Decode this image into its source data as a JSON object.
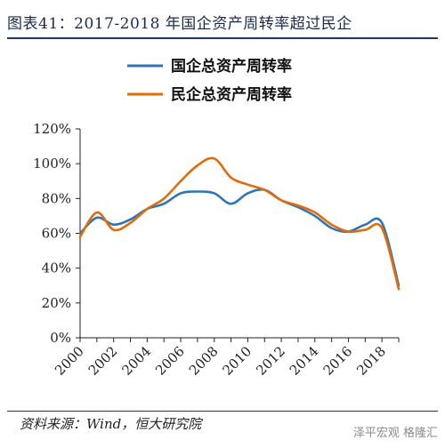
{
  "header": {
    "title": "图表41：2017-2018 年国企资产周转率超过民企"
  },
  "footer": {
    "source": "资料来源：Wind，恒大研究院",
    "watermark": "泽平宏观 格隆汇"
  },
  "chart_data": {
    "type": "line",
    "x": [
      2000,
      2001,
      2002,
      2003,
      2004,
      2005,
      2006,
      2007,
      2008,
      2009,
      2010,
      2011,
      2012,
      2013,
      2014,
      2015,
      2016,
      2017,
      2018,
      2019
    ],
    "xticks": [
      "2000",
      "2002",
      "2004",
      "2006",
      "2008",
      "2010",
      "2012",
      "2014",
      "2016",
      "2018"
    ],
    "yticks": [
      "0%",
      "20%",
      "40%",
      "60%",
      "80%",
      "100%",
      "120%"
    ],
    "ylim": [
      0,
      120
    ],
    "xlim": [
      2000,
      2019
    ],
    "grid": false,
    "legend_position": "top",
    "series": [
      {
        "name": "国企总资产周转率",
        "color": "#2e75b6",
        "values": [
          60,
          69,
          65,
          68,
          74,
          77,
          83,
          84,
          83,
          77,
          83,
          85,
          79,
          75,
          70,
          63,
          61,
          65,
          66,
          30
        ]
      },
      {
        "name": "民企总资产周转率",
        "color": "#e36c09",
        "values": [
          58,
          72,
          62,
          66,
          74,
          80,
          90,
          99,
          103,
          92,
          88,
          85,
          79,
          76,
          72,
          65,
          61,
          62,
          63,
          28
        ]
      }
    ]
  }
}
